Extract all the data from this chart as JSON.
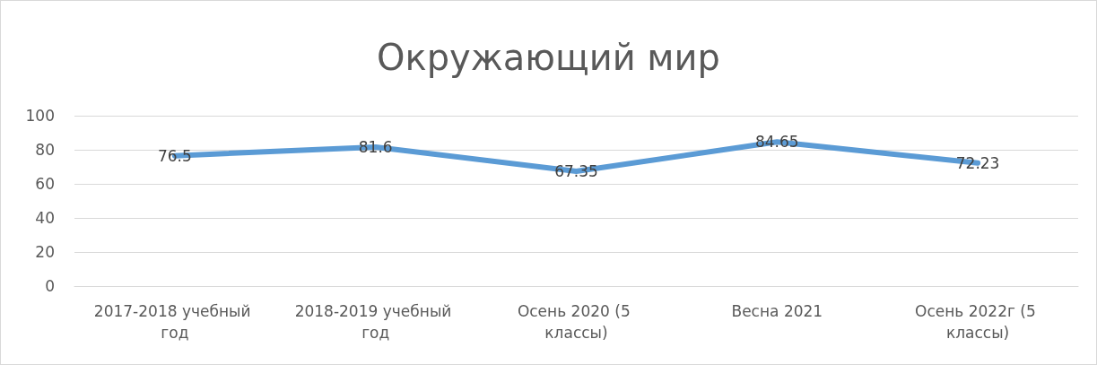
{
  "chart_data": {
    "type": "line",
    "title": "Окружающий мир",
    "categories": [
      "2017-2018 учебный год",
      "2018-2019 учебный год",
      "Осень 2020 (5 классы)",
      "Весна 2021",
      "Осень 2022г (5 классы)"
    ],
    "series": [
      {
        "color": "#5b9bd5",
        "values": [
          76.5,
          81.6,
          67.35,
          84.65,
          72.23
        ]
      }
    ],
    "ylim": [
      0,
      100
    ],
    "yticks": [
      0,
      20,
      40,
      60,
      80,
      100
    ],
    "grid": "y",
    "data_labels": true,
    "marker": "none",
    "line_style": "solid"
  }
}
